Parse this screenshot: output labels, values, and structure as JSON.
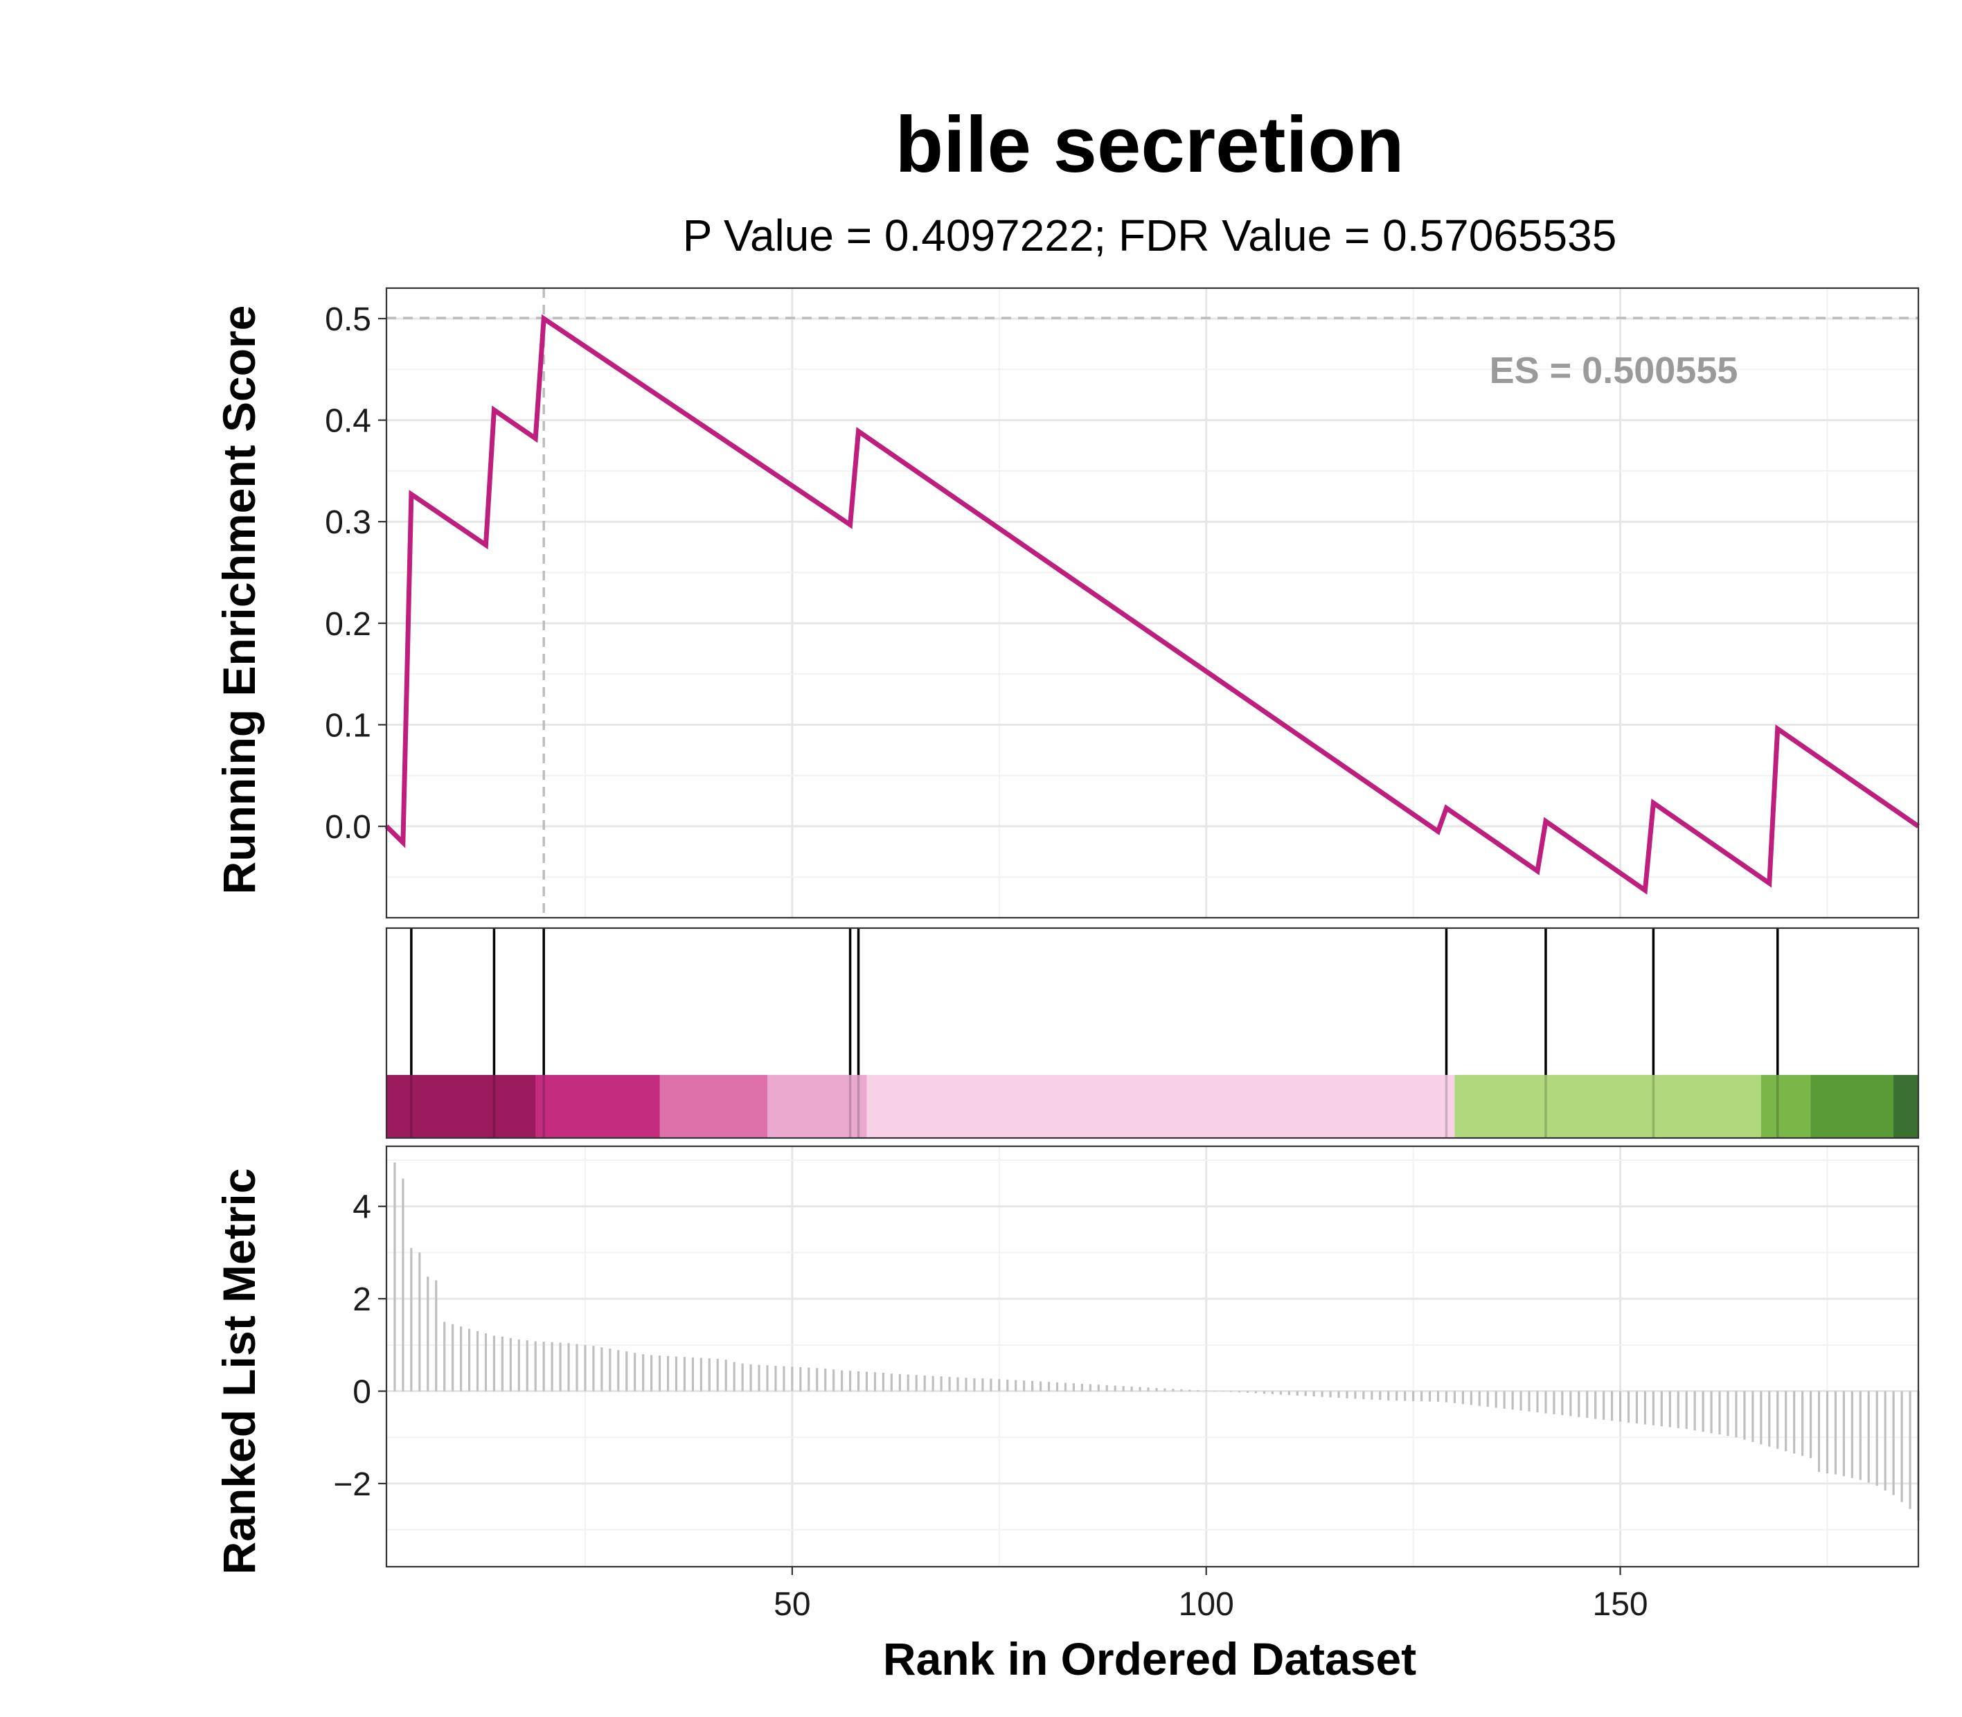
{
  "chart_data": {
    "type": "line",
    "title": "bile secretion",
    "subtitle": "P Value = 0.4097222; FDR Value = 0.57065535",
    "es_label": "ES = 0.500555",
    "xlabel": "Rank in Ordered Dataset",
    "ylabel_top": "Running Enrichment Score",
    "ylabel_bottom": "Ranked List Metric",
    "xlim": [
      1,
      186
    ],
    "x_ticks": [
      50,
      100,
      150
    ],
    "x_tick_labels": [
      "50",
      "100",
      "150"
    ],
    "es_ylim": [
      -0.09,
      0.53
    ],
    "es_y_ticks": [
      0.0,
      0.1,
      0.2,
      0.3,
      0.4,
      0.5
    ],
    "es_y_tick_labels": [
      "0.0",
      "0.1",
      "0.2",
      "0.3",
      "0.4",
      "0.5"
    ],
    "enrichment_score": 0.500555,
    "max_rank": 20,
    "running_es": [
      [
        1,
        0.0
      ],
      [
        3,
        -0.016
      ],
      [
        4,
        0.327
      ],
      [
        13,
        0.277
      ],
      [
        14,
        0.41
      ],
      [
        19,
        0.382
      ],
      [
        20,
        0.5
      ],
      [
        57,
        0.297
      ],
      [
        58,
        0.389
      ],
      [
        128,
        -0.005
      ],
      [
        129,
        0.018
      ],
      [
        140,
        -0.044
      ],
      [
        141,
        0.005
      ],
      [
        153,
        -0.063
      ],
      [
        154,
        0.023
      ],
      [
        168,
        -0.056
      ],
      [
        169,
        0.096
      ],
      [
        186,
        0.0
      ]
    ],
    "hit_positions": [
      4,
      14,
      20,
      57,
      58,
      129,
      141,
      154,
      169
    ],
    "color_bar": [
      {
        "from": 1,
        "to": 19,
        "color": "#9a1b5e"
      },
      {
        "from": 19,
        "to": 34,
        "color": "#c42c80"
      },
      {
        "from": 34,
        "to": 47,
        "color": "#de71aa"
      },
      {
        "from": 47,
        "to": 59,
        "color": "#eba9cf"
      },
      {
        "from": 59,
        "to": 130,
        "color": "#f8d1e7"
      },
      {
        "from": 130,
        "to": 167,
        "color": "#b0d97d"
      },
      {
        "from": 167,
        "to": 173,
        "color": "#7ab648"
      },
      {
        "from": 173,
        "to": 183,
        "color": "#5a9b38"
      },
      {
        "from": 183,
        "to": 186,
        "color": "#3b7130"
      }
    ],
    "metric_ylim": [
      -3.8,
      5.3
    ],
    "metric_y_ticks": [
      -2,
      0,
      2,
      4
    ],
    "metric_y_tick_labels": [
      "−2",
      "0",
      "2",
      "4"
    ],
    "ranked_metric": [
      4.95,
      4.6,
      3.1,
      3.0,
      2.48,
      2.4,
      1.5,
      1.45,
      1.4,
      1.35,
      1.3,
      1.25,
      1.2,
      1.18,
      1.15,
      1.12,
      1.1,
      1.08,
      1.07,
      1.06,
      1.05,
      1.04,
      1.02,
      1.0,
      0.98,
      0.95,
      0.92,
      0.89,
      0.86,
      0.83,
      0.8,
      0.78,
      0.77,
      0.76,
      0.75,
      0.74,
      0.73,
      0.72,
      0.71,
      0.7,
      0.68,
      0.63,
      0.6,
      0.58,
      0.57,
      0.56,
      0.55,
      0.54,
      0.53,
      0.52,
      0.51,
      0.5,
      0.49,
      0.47,
      0.45,
      0.44,
      0.43,
      0.42,
      0.41,
      0.4,
      0.38,
      0.37,
      0.36,
      0.35,
      0.34,
      0.33,
      0.32,
      0.31,
      0.3,
      0.29,
      0.28,
      0.28,
      0.27,
      0.26,
      0.25,
      0.24,
      0.23,
      0.22,
      0.21,
      0.2,
      0.19,
      0.18,
      0.17,
      0.16,
      0.15,
      0.14,
      0.13,
      0.12,
      0.11,
      0.1,
      0.09,
      0.08,
      0.07,
      0.06,
      0.05,
      0.04,
      0.03,
      0.02,
      0.015,
      0.005,
      -0.005,
      -0.015,
      -0.025,
      -0.035,
      -0.045,
      -0.055,
      -0.065,
      -0.075,
      -0.085,
      -0.095,
      -0.105,
      -0.115,
      -0.125,
      -0.135,
      -0.145,
      -0.155,
      -0.165,
      -0.175,
      -0.185,
      -0.19,
      -0.2,
      -0.205,
      -0.21,
      -0.215,
      -0.22,
      -0.225,
      -0.23,
      -0.24,
      -0.26,
      -0.28,
      -0.3,
      -0.32,
      -0.34,
      -0.36,
      -0.38,
      -0.4,
      -0.42,
      -0.44,
      -0.46,
      -0.48,
      -0.5,
      -0.52,
      -0.54,
      -0.56,
      -0.58,
      -0.6,
      -0.62,
      -0.64,
      -0.66,
      -0.68,
      -0.7,
      -0.72,
      -0.74,
      -0.76,
      -0.78,
      -0.8,
      -0.82,
      -0.85,
      -0.88,
      -0.91,
      -0.94,
      -0.97,
      -1.0,
      -1.05,
      -1.1,
      -1.15,
      -1.2,
      -1.25,
      -1.3,
      -1.35,
      -1.4,
      -1.45,
      -1.75,
      -1.78,
      -1.8,
      -1.84,
      -1.88,
      -1.92,
      -1.98,
      -2.05,
      -2.15,
      -2.25,
      -2.4,
      -2.55,
      -2.8
    ]
  }
}
